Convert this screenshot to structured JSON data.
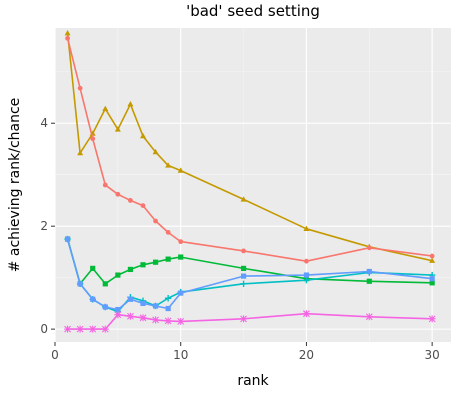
{
  "chart_data": {
    "type": "line",
    "title": "'bad' seed setting",
    "xlabel": "rank",
    "ylabel": "# achieving rank/chance",
    "xlim": [
      0,
      31.5
    ],
    "ylim": [
      -0.25,
      5.85
    ],
    "x_ticks": [
      0,
      10,
      20,
      30
    ],
    "y_ticks": [
      0,
      2,
      4
    ],
    "grid": true,
    "legend": "none",
    "x": [
      1,
      2,
      3,
      4,
      5,
      6,
      7,
      8,
      9,
      10,
      15,
      20,
      25,
      30
    ],
    "series": [
      {
        "color": "#C49A00",
        "marker": "triangle",
        "values": [
          5.75,
          3.42,
          3.8,
          4.28,
          3.88,
          4.37,
          3.75,
          3.44,
          3.18,
          3.08,
          2.52,
          1.95,
          1.6,
          1.33
        ]
      },
      {
        "color": "#F8766D",
        "marker": "circle",
        "values": [
          5.65,
          4.68,
          3.7,
          2.8,
          2.62,
          2.5,
          2.4,
          2.1,
          1.88,
          1.7,
          1.52,
          1.32,
          1.58,
          1.42
        ]
      },
      {
        "color": "#00BA38",
        "marker": "square",
        "values": [
          1.75,
          0.88,
          1.18,
          0.88,
          1.05,
          1.16,
          1.25,
          1.3,
          1.36,
          1.4,
          1.18,
          0.98,
          0.93,
          0.9
        ]
      },
      {
        "color": "#00BFC4",
        "marker": "plus",
        "values": [
          1.75,
          0.88,
          0.58,
          0.43,
          0.34,
          0.62,
          0.55,
          0.45,
          0.6,
          0.72,
          0.88,
          0.95,
          1.1,
          1.05
        ]
      },
      {
        "color": "#619CFF",
        "marker": "square",
        "values": [
          1.75,
          0.88,
          0.58,
          0.43,
          0.38,
          0.58,
          0.5,
          0.45,
          0.4,
          0.7,
          1.03,
          1.05,
          1.12,
          0.98
        ]
      },
      {
        "color": "#F564E3",
        "marker": "star",
        "values": [
          0.0,
          0.0,
          0.0,
          0.0,
          0.28,
          0.25,
          0.22,
          0.18,
          0.16,
          0.15,
          0.2,
          0.3,
          0.24,
          0.2
        ]
      }
    ]
  }
}
